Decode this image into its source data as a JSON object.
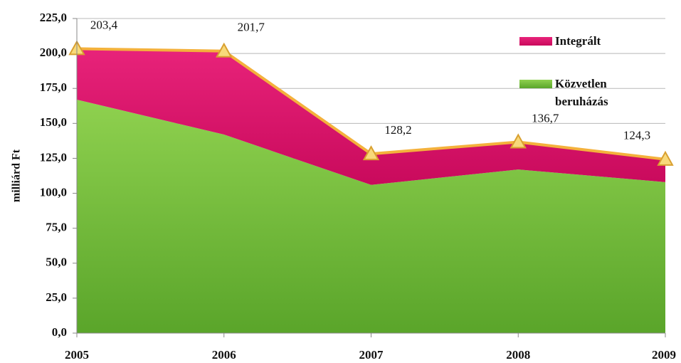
{
  "chart_data": {
    "type": "stacked_area",
    "ylabel": "milliárd Ft",
    "categories": [
      "2005",
      "2006",
      "2007",
      "2008",
      "2009"
    ],
    "series": [
      {
        "name": "Közvetlen beruházás",
        "color": "#7dc242",
        "values": [
          167.0,
          142.0,
          106.0,
          117.0,
          108.0
        ]
      },
      {
        "name": "Integrált",
        "color": "#e0106a",
        "values": [
          36.4,
          59.7,
          22.2,
          19.7,
          16.3
        ]
      }
    ],
    "totals": [
      203.4,
      201.7,
      128.2,
      136.7,
      124.3
    ],
    "total_labels": [
      "203,4",
      "201,7",
      "128,2",
      "136,7",
      "124,3"
    ],
    "total_color": "#f4b13c",
    "ylim": [
      0,
      225
    ],
    "yticks": [
      {
        "value": 0,
        "label": "0,0"
      },
      {
        "value": 25,
        "label": "25,0"
      },
      {
        "value": 50,
        "label": "50,0"
      },
      {
        "value": 75,
        "label": "75,0"
      },
      {
        "value": 100,
        "label": "100,0"
      },
      {
        "value": 125,
        "label": "125,0"
      },
      {
        "value": 150,
        "label": "150,0"
      },
      {
        "value": 175,
        "label": "175,0"
      },
      {
        "value": 200,
        "label": "200,0"
      },
      {
        "value": 225,
        "label": "225,0"
      }
    ],
    "grid": true,
    "legend": "upper right"
  }
}
